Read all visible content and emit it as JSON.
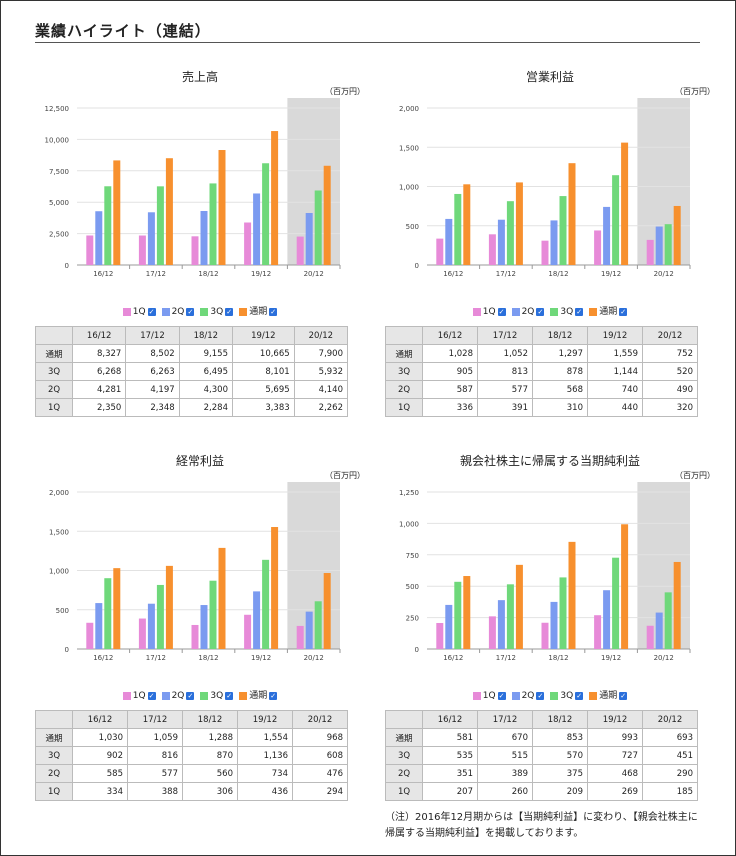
{
  "page": {
    "title": "業績ハイライト（連結）",
    "note": "（注）2016年12月期からは【当期純利益】に変わり、【親会社株主に帰属する当期純利益】を掲載しております。"
  },
  "legend": {
    "items": [
      {
        "label": "1Q",
        "color": "#e78ad8"
      },
      {
        "label": "2Q",
        "color": "#7b9bf0"
      },
      {
        "label": "3Q",
        "color": "#6fd87a"
      },
      {
        "label": "通期",
        "color": "#f7902e"
      }
    ],
    "check_glyph": "✓"
  },
  "colors": {
    "q1": "#e78ad8",
    "q2": "#7b9bf0",
    "q3": "#6fd87a",
    "full": "#f7902e",
    "shade": "#d9d9d9"
  },
  "charts": [
    {
      "title": "売上高",
      "unit": "（百万円）",
      "row_labels": [
        "通期",
        "3Q",
        "2Q",
        "1Q"
      ],
      "table": [
        [
          "8,327",
          "8,502",
          "9,155",
          "10,665",
          "7,900"
        ],
        [
          "6,268",
          "6,263",
          "6,495",
          "8,101",
          "5,932"
        ],
        [
          "4,281",
          "4,197",
          "4,300",
          "5,695",
          "4,140"
        ],
        [
          "2,350",
          "2,348",
          "2,284",
          "3,383",
          "2,262"
        ]
      ]
    },
    {
      "title": "営業利益",
      "unit": "（百万円）",
      "row_labels": [
        "通期",
        "3Q",
        "2Q",
        "1Q"
      ],
      "table": [
        [
          "1,028",
          "1,052",
          "1,297",
          "1,559",
          "752"
        ],
        [
          "905",
          "813",
          "878",
          "1,144",
          "520"
        ],
        [
          "587",
          "577",
          "568",
          "740",
          "490"
        ],
        [
          "336",
          "391",
          "310",
          "440",
          "320"
        ]
      ]
    },
    {
      "title": "経常利益",
      "unit": "（百万円）",
      "row_labels": [
        "通期",
        "3Q",
        "2Q",
        "1Q"
      ],
      "table": [
        [
          "1,030",
          "1,059",
          "1,288",
          "1,554",
          "968"
        ],
        [
          "902",
          "816",
          "870",
          "1,136",
          "608"
        ],
        [
          "585",
          "577",
          "560",
          "734",
          "476"
        ],
        [
          "334",
          "388",
          "306",
          "436",
          "294"
        ]
      ]
    },
    {
      "title": "親会社株主に帰属する当期純利益",
      "unit": "（百万円）",
      "row_labels": [
        "通期",
        "3Q",
        "2Q",
        "1Q"
      ],
      "table": [
        [
          "581",
          "670",
          "853",
          "993",
          "693"
        ],
        [
          "535",
          "515",
          "570",
          "727",
          "451"
        ],
        [
          "351",
          "389",
          "375",
          "468",
          "290"
        ],
        [
          "207",
          "260",
          "209",
          "269",
          "185"
        ]
      ]
    }
  ],
  "chart_data": [
    {
      "type": "bar",
      "title": "売上高",
      "unit": "（百万円）",
      "categories": [
        "16/12",
        "17/12",
        "18/12",
        "19/12",
        "20/12"
      ],
      "ylim": [
        0,
        12500
      ],
      "yticks": [
        "0",
        "2,500",
        "5,000",
        "7,500",
        "10,000",
        "12,500"
      ],
      "ytick_values": [
        0,
        2500,
        5000,
        7500,
        10000,
        12500
      ],
      "series": [
        {
          "name": "1Q",
          "values": [
            2350,
            2348,
            2284,
            3383,
            2262
          ]
        },
        {
          "name": "2Q",
          "values": [
            4281,
            4197,
            4300,
            5695,
            4140
          ]
        },
        {
          "name": "3Q",
          "values": [
            6268,
            6263,
            6495,
            8101,
            5932
          ]
        },
        {
          "name": "通期",
          "values": [
            8327,
            8502,
            9155,
            10665,
            7900
          ]
        }
      ],
      "shaded_category": "20/12",
      "grid": true
    },
    {
      "type": "bar",
      "title": "営業利益",
      "unit": "（百万円）",
      "categories": [
        "16/12",
        "17/12",
        "18/12",
        "19/12",
        "20/12"
      ],
      "ylim": [
        0,
        2000
      ],
      "yticks": [
        "0",
        "500",
        "1,000",
        "1,500",
        "2,000"
      ],
      "ytick_values": [
        0,
        500,
        1000,
        1500,
        2000
      ],
      "series": [
        {
          "name": "1Q",
          "values": [
            336,
            391,
            310,
            440,
            320
          ]
        },
        {
          "name": "2Q",
          "values": [
            587,
            577,
            568,
            740,
            490
          ]
        },
        {
          "name": "3Q",
          "values": [
            905,
            813,
            878,
            1144,
            520
          ]
        },
        {
          "name": "通期",
          "values": [
            1028,
            1052,
            1297,
            1559,
            752
          ]
        }
      ],
      "shaded_category": "20/12",
      "grid": true
    },
    {
      "type": "bar",
      "title": "経常利益",
      "unit": "（百万円）",
      "categories": [
        "16/12",
        "17/12",
        "18/12",
        "19/12",
        "20/12"
      ],
      "ylim": [
        0,
        2000
      ],
      "yticks": [
        "0",
        "500",
        "1,000",
        "1,500",
        "2,000"
      ],
      "ytick_values": [
        0,
        500,
        1000,
        1500,
        2000
      ],
      "series": [
        {
          "name": "1Q",
          "values": [
            334,
            388,
            306,
            436,
            294
          ]
        },
        {
          "name": "2Q",
          "values": [
            585,
            577,
            560,
            734,
            476
          ]
        },
        {
          "name": "3Q",
          "values": [
            902,
            816,
            870,
            1136,
            608
          ]
        },
        {
          "name": "通期",
          "values": [
            1030,
            1059,
            1288,
            1554,
            968
          ]
        }
      ],
      "shaded_category": "20/12",
      "grid": true
    },
    {
      "type": "bar",
      "title": "親会社株主に帰属する当期純利益",
      "unit": "（百万円）",
      "categories": [
        "16/12",
        "17/12",
        "18/12",
        "19/12",
        "20/12"
      ],
      "ylim": [
        0,
        1250
      ],
      "yticks": [
        "0",
        "250",
        "500",
        "750",
        "1,000",
        "1,250"
      ],
      "ytick_values": [
        0,
        250,
        500,
        750,
        1000,
        1250
      ],
      "series": [
        {
          "name": "1Q",
          "values": [
            207,
            260,
            209,
            269,
            185
          ]
        },
        {
          "name": "2Q",
          "values": [
            351,
            389,
            375,
            468,
            290
          ]
        },
        {
          "name": "3Q",
          "values": [
            535,
            515,
            570,
            727,
            451
          ]
        },
        {
          "name": "通期",
          "values": [
            581,
            670,
            853,
            993,
            693
          ]
        }
      ],
      "shaded_category": "20/12",
      "grid": true
    }
  ]
}
